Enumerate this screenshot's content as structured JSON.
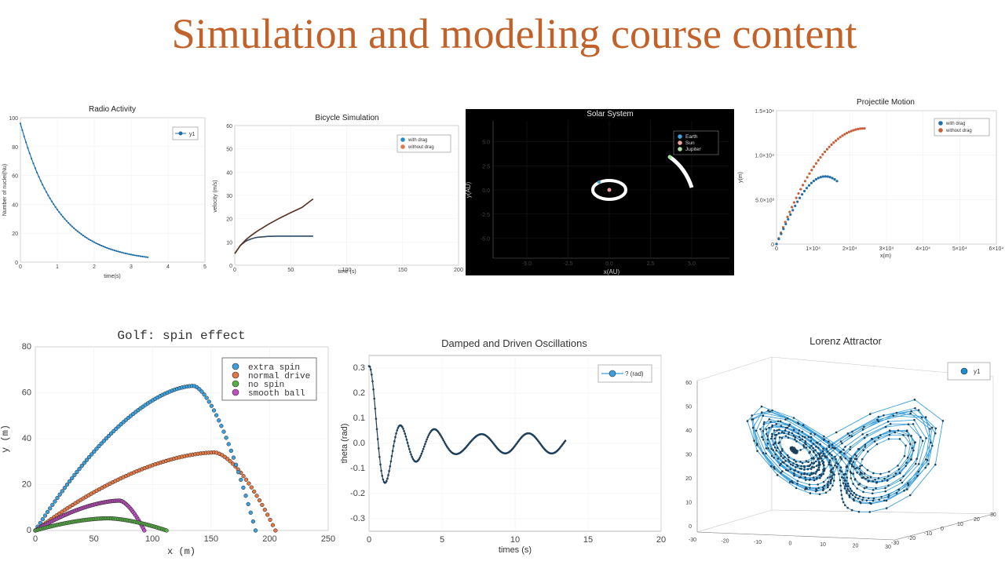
{
  "page": {
    "title": "Simulation and modeling course content"
  },
  "chart_data": [
    {
      "id": "radio",
      "type": "line",
      "title": "Radio Activity",
      "xlabel": "time(s)",
      "ylabel": "Number of nuclei(Nu)",
      "xlim": [
        0,
        5
      ],
      "ylim": [
        0,
        100
      ],
      "xticks": [
        0,
        1,
        2,
        3,
        4,
        5
      ],
      "yticks": [
        0,
        20,
        40,
        60,
        80,
        100
      ],
      "legend_position": "top-right",
      "series": [
        {
          "name": "y1",
          "color": "#1f6fa8",
          "x": [
            0,
            0.25,
            0.5,
            0.75,
            1,
            1.25,
            1.5,
            1.75,
            2,
            2.25,
            2.5,
            2.75,
            3,
            3.25,
            3.5
          ],
          "y": [
            96,
            75,
            59,
            46,
            36,
            28,
            22,
            17,
            13,
            10.3,
            8,
            6.3,
            4.9,
            3.8,
            3
          ]
        }
      ]
    },
    {
      "id": "bicycle",
      "type": "line",
      "title": "Bicycle Simulation",
      "xlabel": "time (s)",
      "ylabel": "velocity (m/s)",
      "xlim": [
        0,
        200
      ],
      "ylim": [
        0,
        60
      ],
      "xticks": [
        0,
        50,
        100,
        150,
        200
      ],
      "yticks": [
        0,
        10,
        20,
        30,
        40,
        50,
        60
      ],
      "legend_position": "top-right",
      "series": [
        {
          "name": "with drag",
          "color": "#2c4a63",
          "x": [
            0,
            5,
            10,
            15,
            20,
            30,
            40,
            50,
            60,
            70
          ],
          "y": [
            5,
            8.5,
            10.4,
            11.4,
            12,
            12.4,
            12.5,
            12.5,
            12.5,
            12.5
          ]
        },
        {
          "name": "without drag",
          "color": "#5a3020",
          "x": [
            0,
            5,
            10,
            15,
            20,
            30,
            40,
            50,
            60,
            70
          ],
          "y": [
            5,
            8.5,
            11,
            12.9,
            14.6,
            17.6,
            20.2,
            22.6,
            24.8,
            28.5
          ]
        }
      ]
    },
    {
      "id": "solar",
      "type": "scatter",
      "title": "Solar System",
      "xlabel": "x(AU)",
      "ylabel": "y(AU)",
      "xlim": [
        -7.5,
        7.5
      ],
      "ylim": [
        -7.5,
        7.5
      ],
      "xticks": [
        -5.0,
        -2.5,
        0.0,
        2.5,
        5.0
      ],
      "yticks": [
        5.0,
        2.5,
        0.0,
        -2.5,
        -5.0
      ],
      "legend_position": "top-right",
      "series": [
        {
          "name": "Earth",
          "color": "#3fa0e0"
        },
        {
          "name": "Sun",
          "color": "#f0a0a0"
        },
        {
          "name": "Jupiter",
          "color": "#a8e0a0"
        }
      ]
    },
    {
      "id": "projectile",
      "type": "scatter",
      "title": "Projectile Motion",
      "xlabel": "x(m)",
      "ylabel": "y(m)",
      "xlim": [
        0,
        60000
      ],
      "ylim": [
        0,
        15000
      ],
      "xticks": [
        "0",
        "1×10⁴",
        "2×10⁴",
        "3×10⁴",
        "4×10⁴",
        "5×10⁴",
        "6×10⁴"
      ],
      "yticks": [
        "0",
        "5.0×10³",
        "1.0×10⁴",
        "1.5×10⁴"
      ],
      "legend_position": "top-right",
      "series": [
        {
          "name": "with drag",
          "color": "#1f6fa8"
        },
        {
          "name": "without drag",
          "color": "#c8603a"
        }
      ]
    },
    {
      "id": "golf",
      "type": "scatter",
      "title": "Golf: spin effect",
      "xlabel": "x (m)",
      "ylabel": "y (m)",
      "xlim": [
        0,
        250
      ],
      "ylim": [
        0,
        80
      ],
      "xticks": [
        0,
        50,
        100,
        150,
        200,
        250
      ],
      "yticks": [
        0,
        20,
        40,
        60,
        80
      ],
      "legend_position": "top-right",
      "series": [
        {
          "name": "extra spin",
          "color": "#3ca0dc"
        },
        {
          "name": "normal drive",
          "color": "#e07848"
        },
        {
          "name": "no spin",
          "color": "#58b048"
        },
        {
          "name": "smooth ball",
          "color": "#c050c0"
        }
      ]
    },
    {
      "id": "oscillation",
      "type": "line",
      "title": "Damped and Driven Oscillations",
      "xlabel": "times (s)",
      "ylabel": "theta (rad)",
      "xlim": [
        0,
        20
      ],
      "ylim": [
        -0.35,
        0.35
      ],
      "xticks": [
        0,
        5,
        10,
        15,
        20
      ],
      "yticks": [
        0.3,
        0.2,
        0.1,
        0.0,
        -0.1,
        -0.2,
        -0.3
      ],
      "legend_position": "top-right",
      "series": [
        {
          "name": "? (rad)",
          "color": "#1f6fa8"
        }
      ]
    },
    {
      "id": "lorenz",
      "type": "line",
      "title": "Lorenz Attractor",
      "zticks": [
        0,
        10,
        20,
        30,
        40,
        50,
        60
      ],
      "xticks": [
        -30,
        -20,
        -10,
        0,
        10,
        20,
        30
      ],
      "yticks": [
        -30,
        -20,
        -10,
        0,
        10,
        20,
        30
      ],
      "legend_position": "top-right",
      "series": [
        {
          "name": "y1",
          "color": "#1f8fd0"
        }
      ]
    }
  ]
}
